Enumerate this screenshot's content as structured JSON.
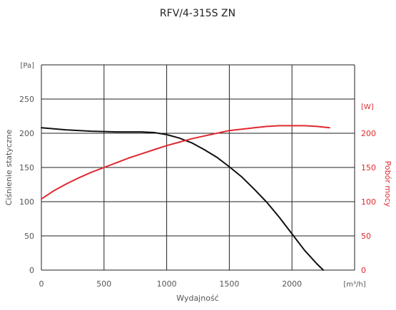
{
  "chart_data": {
    "type": "line",
    "title": "RFV/4-315S ZN",
    "xlabel": "Wydajność",
    "x_unit_label": "[m³/h]",
    "ylabel_left": "Ciśnienie statyczne",
    "y_left_unit_label": "[Pa]",
    "ylabel_right": "Pobór mocy",
    "y_right_unit_label": "[W]",
    "xlim": [
      0,
      2500
    ],
    "ylim_left": [
      0,
      300
    ],
    "ylim_right": [
      0,
      300
    ],
    "x_ticks": [
      "0",
      "500",
      "1000",
      "1500",
      "2000"
    ],
    "y_left_ticks": [
      "0",
      "50",
      "100",
      "150",
      "200",
      "250"
    ],
    "y_right_ticks": [
      "0",
      "50",
      "100",
      "150",
      "200"
    ],
    "grid": true,
    "series": [
      {
        "axis": "left",
        "color": "#111111",
        "x": [
          0,
          200,
          400,
          600,
          800,
          900,
          1000,
          1100,
          1200,
          1300,
          1400,
          1500,
          1600,
          1700,
          1800,
          1900,
          2000,
          2100,
          2200,
          2250
        ],
        "values": [
          208,
          205,
          203,
          202,
          202,
          201,
          198,
          193,
          186,
          176,
          165,
          151,
          136,
          118,
          99,
          77,
          53,
          29,
          9,
          0
        ]
      },
      {
        "axis": "right",
        "color": "#e0282e",
        "x": [
          0,
          100,
          200,
          300,
          400,
          500,
          600,
          700,
          800,
          900,
          1000,
          1100,
          1200,
          1300,
          1400,
          1500,
          1600,
          1700,
          1800,
          1900,
          2000,
          2100,
          2200,
          2300
        ],
        "values": [
          104,
          116,
          126,
          135,
          143,
          150,
          157,
          164,
          170,
          176,
          182,
          187,
          192,
          196,
          200,
          204,
          206,
          208,
          210,
          211,
          211,
          211,
          210,
          208
        ]
      }
    ]
  }
}
